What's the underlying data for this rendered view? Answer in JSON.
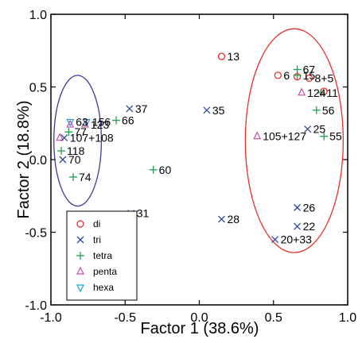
{
  "chart_data": {
    "type": "scatter",
    "xlabel": "Factor 1 (38.6%)",
    "ylabel": "Factor 2 (18.8%)",
    "xlim": [
      -1.0,
      1.0
    ],
    "ylim": [
      -1.0,
      1.0
    ],
    "xticks": [
      "-1.0",
      "-0.5",
      "0.0",
      "0.5",
      "1.0"
    ],
    "yticks": [
      "1.0",
      "0.5",
      "0.0",
      "-0.5",
      "-1.0"
    ],
    "grid": false,
    "legend_position": "bottom-left",
    "legend": [
      {
        "name": "di",
        "marker": "circle",
        "color": "#e8312a"
      },
      {
        "name": "tri",
        "marker": "x",
        "color": "#2b4aa0"
      },
      {
        "name": "tetra",
        "marker": "plus",
        "color": "#21a04a"
      },
      {
        "name": "penta",
        "marker": "triangle-up",
        "color": "#c44fa7"
      },
      {
        "name": "hexa",
        "marker": "triangle-down",
        "color": "#1ba3d6"
      }
    ],
    "points": [
      {
        "label": "13",
        "x": 0.15,
        "y": 0.71,
        "series": "di"
      },
      {
        "label": "6",
        "x": 0.53,
        "y": 0.58,
        "series": "di"
      },
      {
        "label": "",
        "x": 0.66,
        "y": 0.57,
        "series": "di"
      },
      {
        "label": "8+5",
        "x": 0.74,
        "y": 0.56,
        "series": "di"
      },
      {
        "label": "",
        "x": 0.84,
        "y": 0.47,
        "series": "di"
      },
      {
        "label": "15",
        "x": 0.66,
        "y": 0.58,
        "series": "tetra"
      },
      {
        "label": "67",
        "x": 0.66,
        "y": 0.62,
        "series": "tetra"
      },
      {
        "label": "124",
        "x": 0.69,
        "y": 0.46,
        "series": "penta"
      },
      {
        "label": "11",
        "x": 0.82,
        "y": 0.46,
        "series": "tetra"
      },
      {
        "label": "56",
        "x": 0.79,
        "y": 0.34,
        "series": "tetra"
      },
      {
        "label": "25",
        "x": 0.73,
        "y": 0.21,
        "series": "tri"
      },
      {
        "label": "55",
        "x": 0.84,
        "y": 0.16,
        "series": "tetra"
      },
      {
        "label": "105+127",
        "x": 0.39,
        "y": 0.16,
        "series": "penta"
      },
      {
        "label": "35",
        "x": 0.05,
        "y": 0.34,
        "series": "tri"
      },
      {
        "label": "37",
        "x": -0.47,
        "y": 0.35,
        "series": "tri"
      },
      {
        "label": "66",
        "x": -0.56,
        "y": 0.27,
        "series": "tetra"
      },
      {
        "label": "156",
        "x": -0.76,
        "y": 0.26,
        "series": "hexa"
      },
      {
        "label": "123",
        "x": -0.77,
        "y": 0.24,
        "series": "penta"
      },
      {
        "label": "63",
        "x": -0.87,
        "y": 0.26,
        "series": "hexa"
      },
      {
        "label": "",
        "x": -0.87,
        "y": 0.24,
        "series": "penta"
      },
      {
        "label": "77",
        "x": -0.88,
        "y": 0.19,
        "series": "tetra"
      },
      {
        "label": "",
        "x": -0.94,
        "y": 0.15,
        "series": "penta"
      },
      {
        "label": "107+108",
        "x": -0.91,
        "y": 0.15,
        "series": "tri"
      },
      {
        "label": "118",
        "x": -0.93,
        "y": 0.06,
        "series": "tetra"
      },
      {
        "label": "70",
        "x": -0.92,
        "y": 0.0,
        "series": "tri"
      },
      {
        "label": "74",
        "x": -0.85,
        "y": -0.12,
        "series": "tetra"
      },
      {
        "label": "60",
        "x": -0.31,
        "y": -0.07,
        "series": "tetra"
      },
      {
        "label": "31",
        "x": -0.46,
        "y": -0.37,
        "series": "tri"
      },
      {
        "label": "28",
        "x": 0.15,
        "y": -0.41,
        "series": "tri"
      },
      {
        "label": "26",
        "x": 0.66,
        "y": -0.33,
        "series": "tri"
      },
      {
        "label": "22",
        "x": 0.66,
        "y": -0.46,
        "series": "tri"
      },
      {
        "label": "20+33",
        "x": 0.51,
        "y": -0.55,
        "series": "tri"
      }
    ],
    "ellipses": [
      {
        "name": "right-cluster-ellipse",
        "cx": 0.64,
        "cy": 0.13,
        "rx": 0.33,
        "ry": 0.77,
        "color": "#e8312a"
      },
      {
        "name": "left-cluster-ellipse",
        "cx": -0.82,
        "cy": 0.13,
        "rx": 0.16,
        "ry": 0.45,
        "color": "#3a3a9e"
      }
    ]
  }
}
